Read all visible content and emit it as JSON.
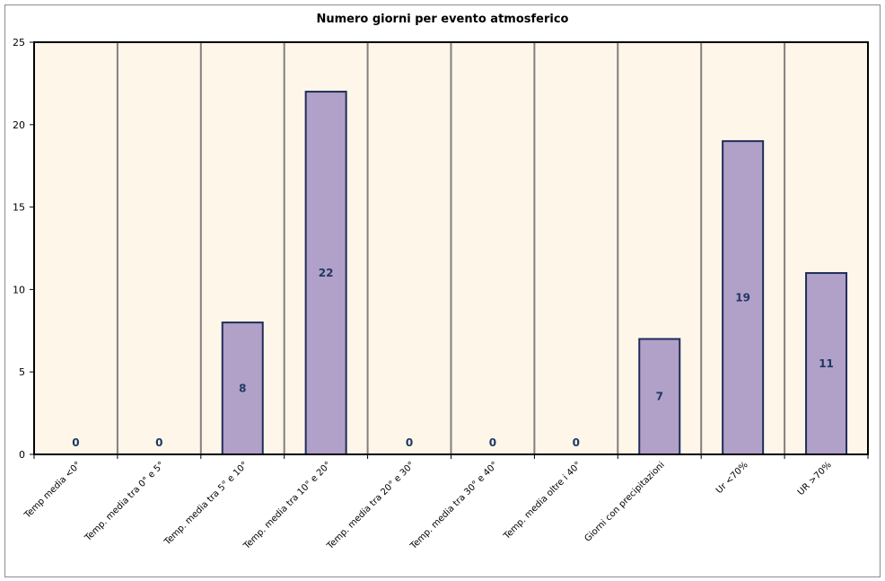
{
  "chart_data": {
    "type": "bar",
    "title": "Numero giorni per evento atmosferico",
    "categories": [
      "Temp media <0°",
      "Temp. media tra 0° e 5°",
      "Temp. media tra 5° e 10°",
      "Temp. media tra 10° e 20°",
      "Temp. media tra 20° e 30°",
      "Temp. media tra 30° e 40°",
      "Temp. media oltre i 40°",
      "Giorni con precipitazioni",
      "Ur <70%",
      "UR >70%"
    ],
    "values": [
      0,
      0,
      8,
      22,
      0,
      0,
      0,
      7,
      19,
      11
    ],
    "ylim": [
      0,
      25
    ],
    "yticks": [
      0,
      5,
      10,
      15,
      20,
      25
    ],
    "xlabel": "",
    "ylabel": "",
    "legend": "none",
    "grid": "vertical category dividers",
    "colors": {
      "bar_fill": "#b1a0c7",
      "bar_stroke": "#1f2d5a",
      "plot_bg": "#fdf6e9",
      "divider": "#808080",
      "data_label": "#1f3864"
    }
  }
}
